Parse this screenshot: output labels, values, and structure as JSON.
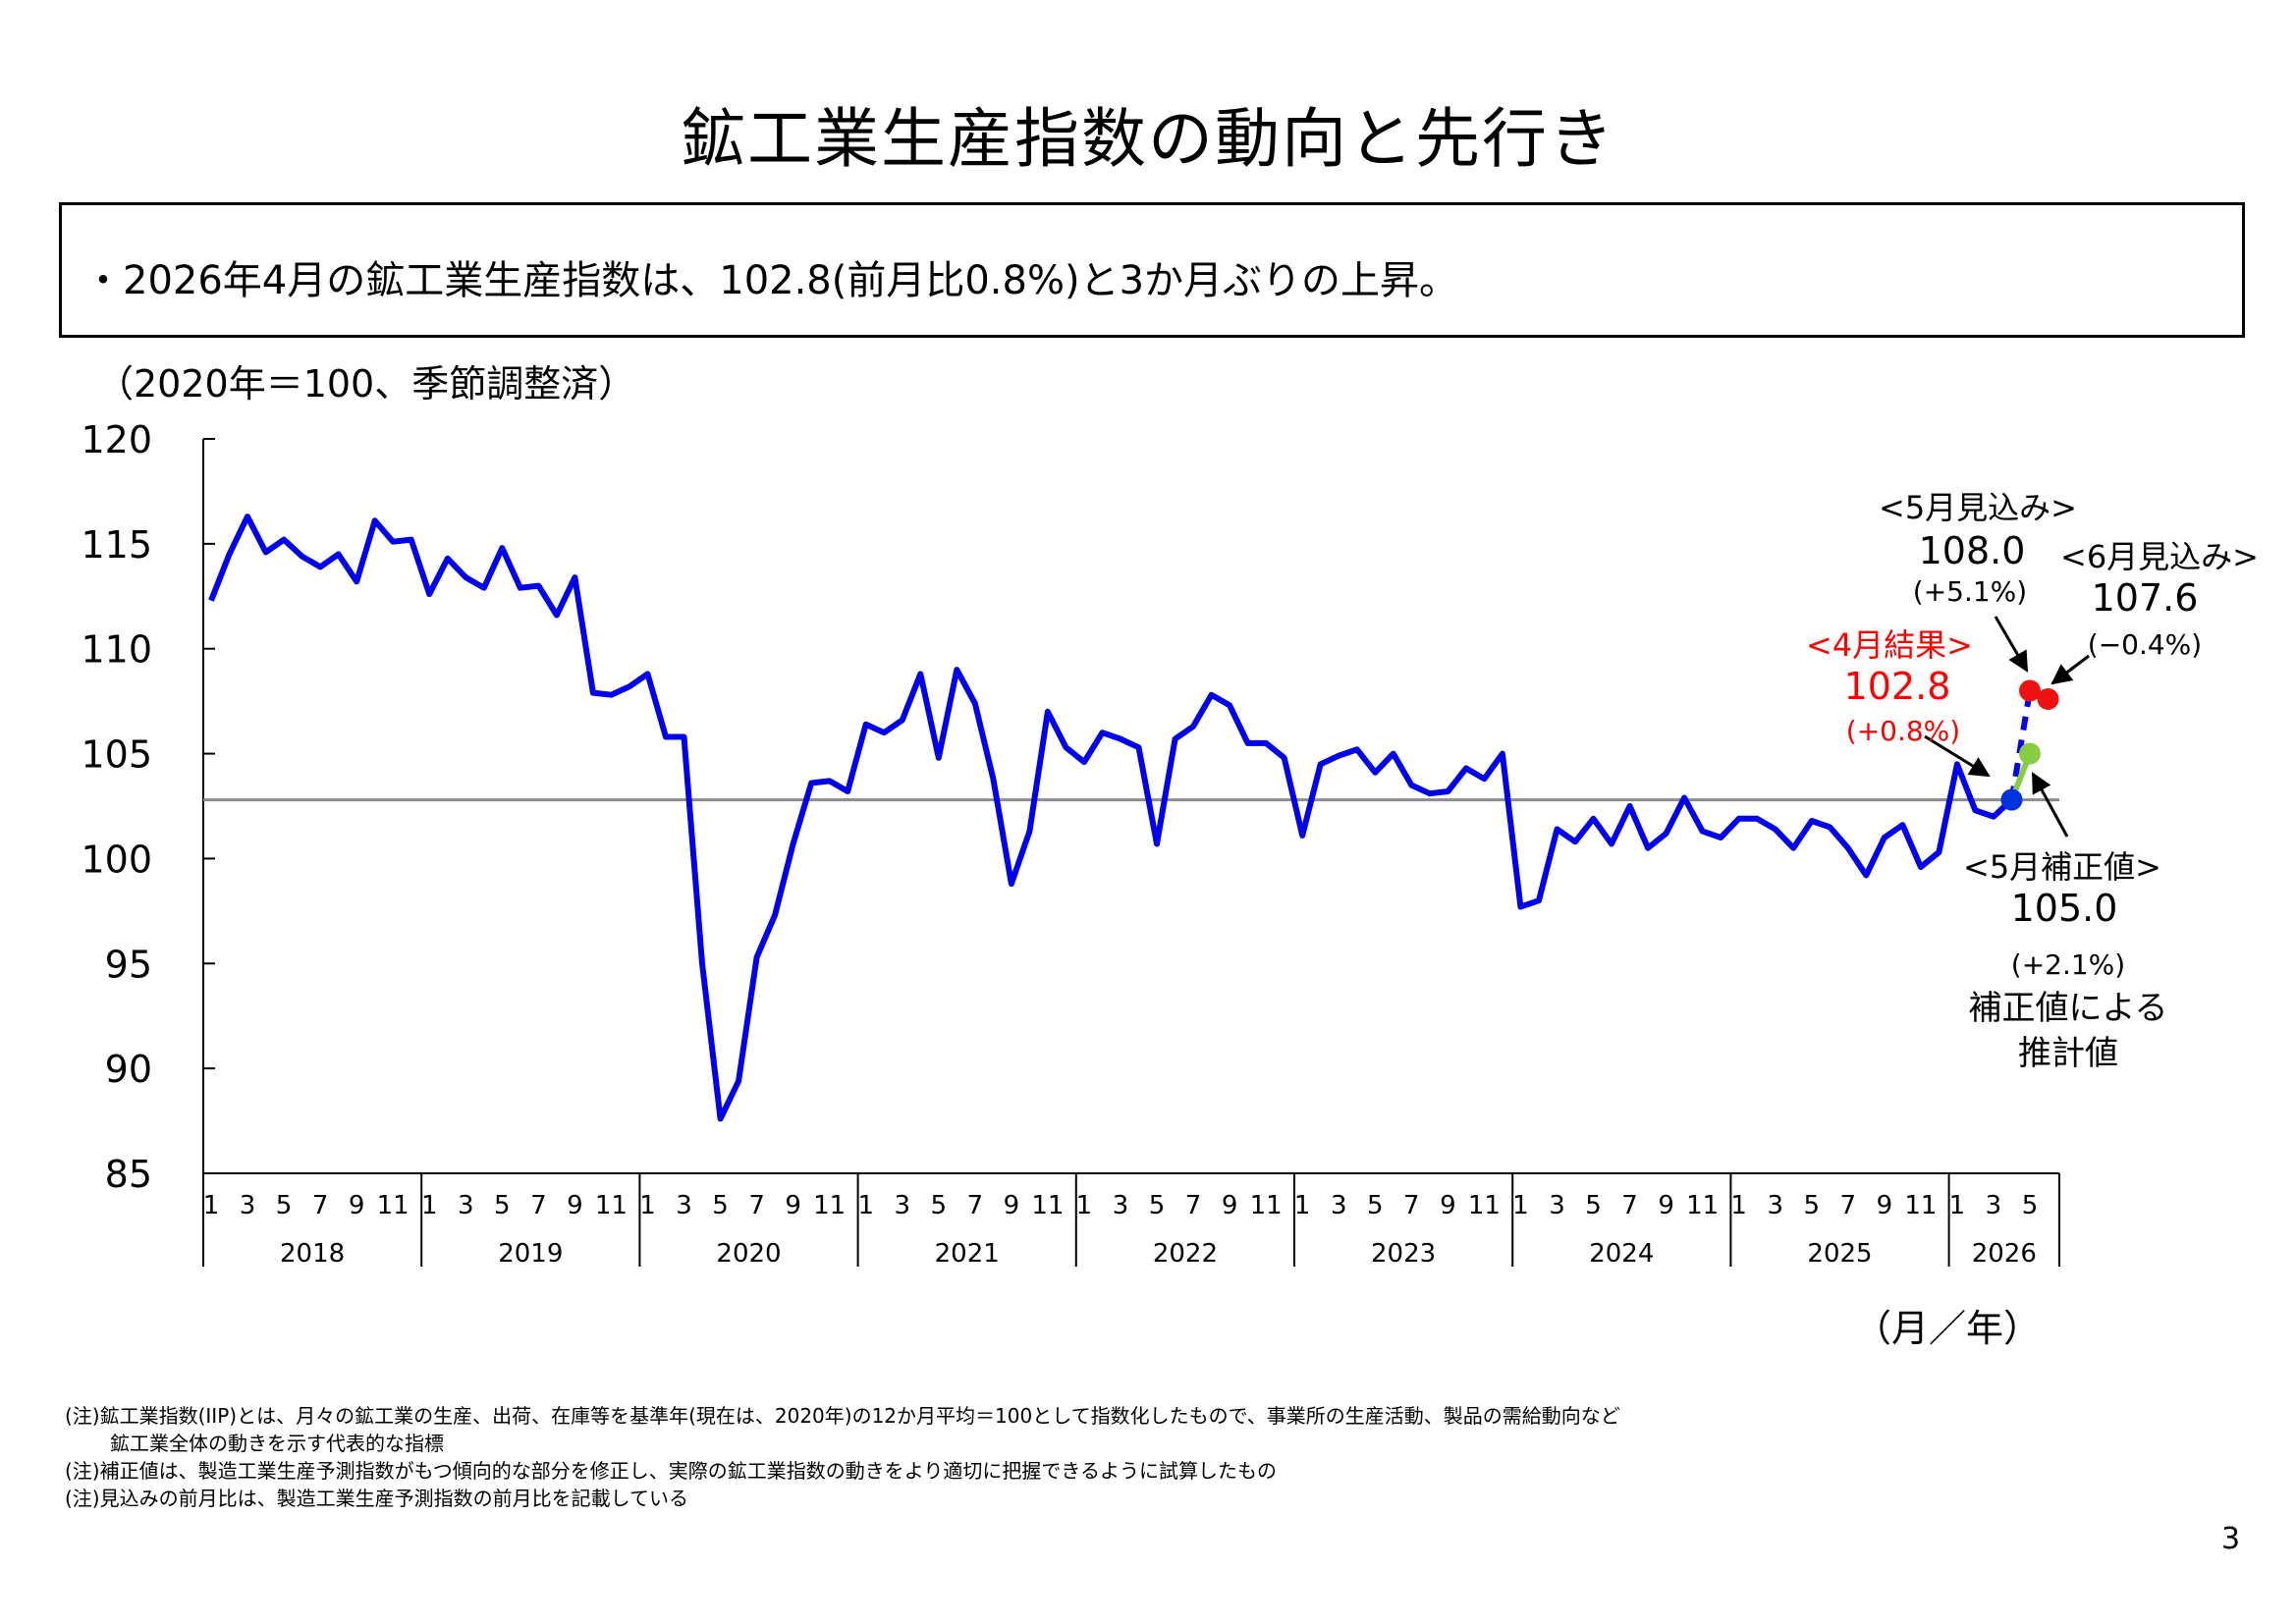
{
  "page": {
    "title": "鉱工業生産指数の動向と先行き",
    "summary": "・2026年4月の鉱工業生産指数は、102.8(前月比0.8%)と3か月ぶりの上昇。",
    "unit_note": "（2020年＝100、季節調整済）",
    "x_unit": "（月／年）",
    "notes": [
      "(注)鉱工業指数(IIP)とは、月々の鉱工業の生産、出荷、在庫等を基準年(現在は、2020年)の12か月平均＝100として指数化したもので、事業所の生産活動、製品の需給動向など",
      "鉱工業全体の動きを示す代表的な指標",
      "(注)補正値は、製造工業生産予測指数がもつ傾向的な部分を修正し、実際の鉱工業指数の動きをより適切に把握できるように試算したもの",
      "(注)見込みの前月比は、製造工業生産予測指数の前月比を記載している"
    ],
    "page_number": "3"
  },
  "chart_data": {
    "type": "line",
    "ylim": [
      85,
      120
    ],
    "yticks": [
      120,
      115,
      110,
      105,
      100,
      95,
      90,
      85
    ],
    "x_start": "2018-01",
    "month_tick_labels": [
      "1",
      "3",
      "5",
      "7",
      "9",
      "11"
    ],
    "year_labels": [
      "2018",
      "2019",
      "2020",
      "2021",
      "2022",
      "2023",
      "2024",
      "2025",
      "2026"
    ],
    "last_year_month_ticks": [
      "1",
      "3",
      "5"
    ],
    "reference_line": 102.8,
    "series": [
      {
        "color": "#0000ee",
        "values": [
          112.3,
          114.5,
          116.3,
          114.6,
          115.2,
          114.4,
          113.9,
          114.5,
          113.2,
          116.1,
          115.1,
          115.2,
          112.6,
          114.3,
          113.4,
          112.9,
          114.8,
          112.9,
          113.0,
          111.6,
          113.4,
          107.9,
          107.8,
          108.2,
          108.8,
          105.8,
          105.8,
          95.0,
          87.6,
          89.4,
          95.3,
          97.3,
          100.7,
          103.6,
          103.7,
          103.2,
          106.4,
          106.0,
          106.6,
          108.8,
          104.8,
          109.0,
          107.4,
          103.8,
          98.8,
          101.3,
          107.0,
          105.3,
          104.6,
          106.0,
          105.7,
          105.3,
          100.7,
          105.7,
          106.3,
          107.8,
          107.3,
          105.5,
          105.5,
          104.8,
          101.1,
          104.5,
          104.9,
          105.2,
          104.1,
          105.0,
          103.5,
          103.1,
          103.2,
          104.3,
          103.8,
          105.0,
          97.7,
          98.0,
          101.4,
          100.8,
          101.9,
          100.7,
          102.5,
          100.5,
          101.2,
          102.9,
          101.3,
          101.0,
          101.9,
          101.9,
          101.4,
          100.5,
          101.8,
          101.5,
          100.5,
          99.2,
          101.0,
          101.6,
          99.6,
          100.3,
          104.5,
          102.3,
          102.0,
          102.8
        ]
      }
    ],
    "forecast_lines": [
      {
        "color": "#0000ee",
        "dash": true,
        "from": 102.8,
        "to": 108.0
      },
      {
        "color": "#88cc44",
        "dash": false,
        "from": 102.8,
        "to": 105.0
      }
    ],
    "markers": [
      {
        "month_index": 99,
        "value": 102.8,
        "color": "#0033dd"
      },
      {
        "month_index": 100,
        "value": 108.0,
        "color": "#ee1111"
      },
      {
        "month_index": 101,
        "value": 107.6,
        "color": "#ee1111"
      },
      {
        "month_index": 100,
        "value": 105.0,
        "color": "#88cc44"
      }
    ],
    "annotations": {
      "result_april": {
        "label": "<4月結果>",
        "value": "102.8",
        "change": "(+0.8%)",
        "color": "#ff0000"
      },
      "forecast_may": {
        "label": "<5月見込み>",
        "value": "108.0",
        "change": "(+5.1%)",
        "color": "#000000"
      },
      "forecast_june": {
        "label": "<6月見込み>",
        "value": "107.6",
        "change": "(−0.4%)",
        "color": "#000000"
      },
      "corrected_may": {
        "label": "<5月補正値>",
        "value": "105.0",
        "change": "(+2.1%)",
        "note_line1": "補正値による",
        "note_line2": "推計値",
        "color": "#000000"
      }
    }
  }
}
